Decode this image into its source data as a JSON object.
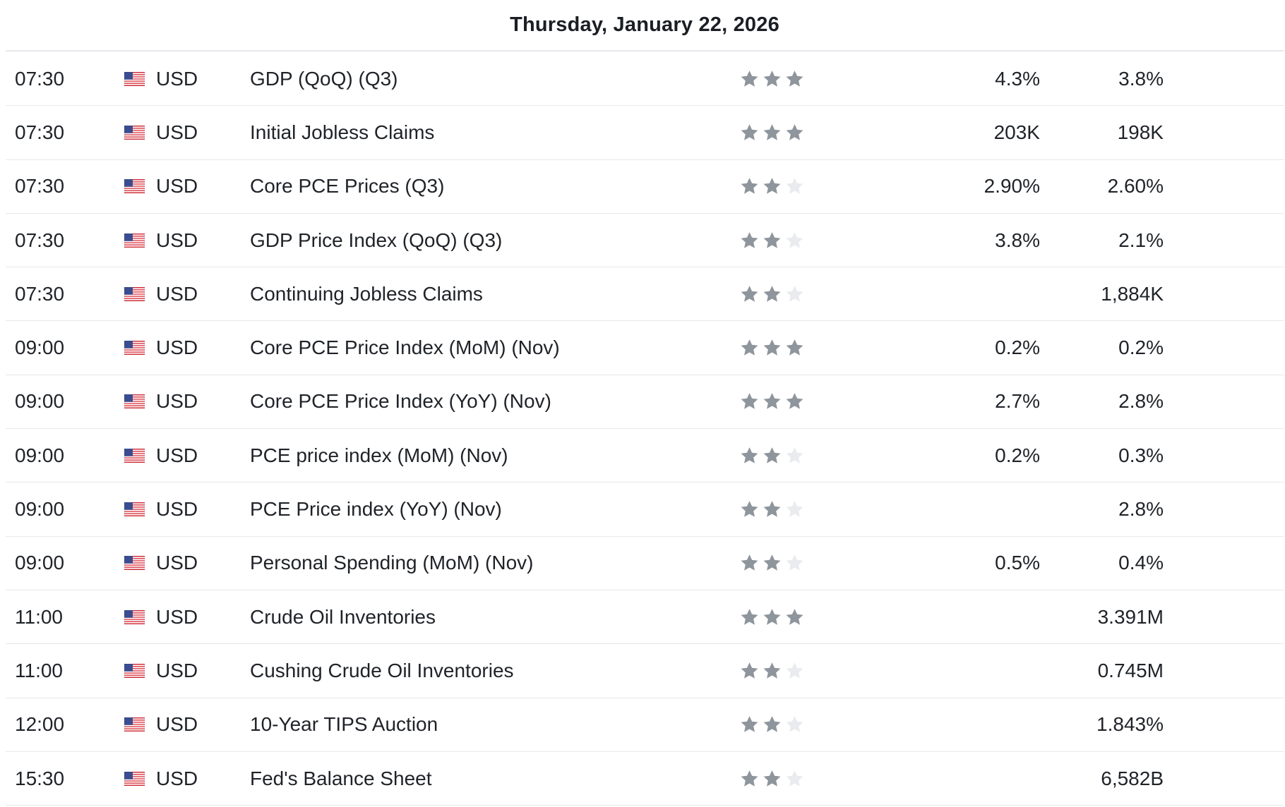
{
  "header": {
    "date": "Thursday, January 22, 2026"
  },
  "colors": {
    "star_filled": "#8f959c",
    "star_empty": "#e9ebee",
    "divider": "#e6e8eb"
  },
  "flag_icon": "us-flag-icon",
  "events": [
    {
      "time": "07:30",
      "currency": "USD",
      "event": "GDP (QoQ) (Q3)",
      "stars": 3,
      "actual": "4.3%",
      "forecast": "3.8%"
    },
    {
      "time": "07:30",
      "currency": "USD",
      "event": "Initial Jobless Claims",
      "stars": 3,
      "actual": "203K",
      "forecast": "198K"
    },
    {
      "time": "07:30",
      "currency": "USD",
      "event": "Core PCE Prices  (Q3)",
      "stars": 2,
      "actual": "2.90%",
      "forecast": "2.60%"
    },
    {
      "time": "07:30",
      "currency": "USD",
      "event": "GDP Price Index (QoQ) (Q3)",
      "stars": 2,
      "actual": "3.8%",
      "forecast": "2.1%"
    },
    {
      "time": "07:30",
      "currency": "USD",
      "event": "Continuing Jobless Claims",
      "stars": 2,
      "actual": "",
      "forecast": "1,884K"
    },
    {
      "time": "09:00",
      "currency": "USD",
      "event": "Core PCE Price Index (MoM) (Nov)",
      "stars": 3,
      "actual": "0.2%",
      "forecast": "0.2%"
    },
    {
      "time": "09:00",
      "currency": "USD",
      "event": "Core PCE Price Index (YoY) (Nov)",
      "stars": 3,
      "actual": "2.7%",
      "forecast": "2.8%"
    },
    {
      "time": "09:00",
      "currency": "USD",
      "event": "PCE price index (MoM) (Nov)",
      "stars": 2,
      "actual": "0.2%",
      "forecast": "0.3%"
    },
    {
      "time": "09:00",
      "currency": "USD",
      "event": "PCE Price index (YoY) (Nov)",
      "stars": 2,
      "actual": "",
      "forecast": "2.8%"
    },
    {
      "time": "09:00",
      "currency": "USD",
      "event": "Personal Spending (MoM) (Nov)",
      "stars": 2,
      "actual": "0.5%",
      "forecast": "0.4%"
    },
    {
      "time": "11:00",
      "currency": "USD",
      "event": "Crude Oil Inventories",
      "stars": 3,
      "actual": "",
      "forecast": "3.391M"
    },
    {
      "time": "11:00",
      "currency": "USD",
      "event": "Cushing Crude Oil Inventories",
      "stars": 2,
      "actual": "",
      "forecast": "0.745M"
    },
    {
      "time": "12:00",
      "currency": "USD",
      "event": "10-Year TIPS Auction",
      "stars": 2,
      "actual": "",
      "forecast": "1.843%"
    },
    {
      "time": "15:30",
      "currency": "USD",
      "event": "Fed's Balance Sheet",
      "stars": 2,
      "actual": "",
      "forecast": "6,582B"
    }
  ]
}
